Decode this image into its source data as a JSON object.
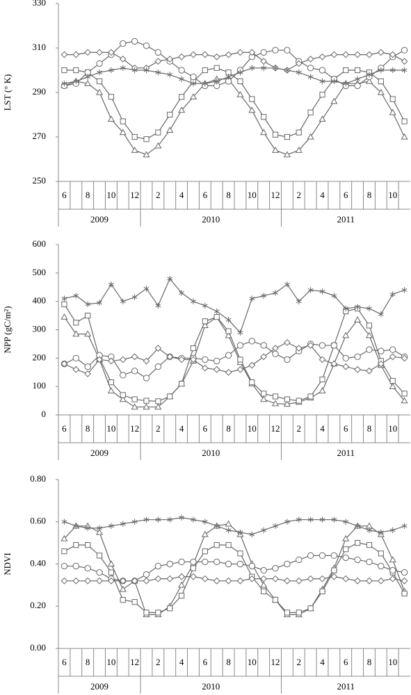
{
  "chart_data": [
    {
      "type": "line",
      "ylabel": "LST (° K)",
      "ylim": [
        250,
        330
      ],
      "yticks": [
        250,
        270,
        290,
        310,
        330
      ],
      "categories": [
        "6",
        null,
        "8",
        null,
        "10",
        null,
        "12",
        null,
        "2",
        null,
        "4",
        null,
        "6",
        null,
        "8",
        null,
        "10",
        null,
        "12",
        null,
        "2",
        null,
        "4",
        null,
        "6",
        null,
        "8",
        null,
        "10",
        null
      ],
      "years": [
        "2009",
        "2010",
        "2011"
      ],
      "series": [
        {
          "marker": "triangle",
          "color": "#666666",
          "values": [
            293,
            295,
            294,
            290,
            278,
            272,
            264,
            262,
            266,
            273,
            282,
            288,
            294,
            296,
            296,
            289,
            282,
            272,
            264,
            262,
            264,
            270,
            278,
            286,
            294,
            294,
            295,
            290,
            281,
            270
          ]
        },
        {
          "marker": "square",
          "color": "#666666",
          "values": [
            300,
            300,
            299,
            295,
            288,
            277,
            270,
            269,
            272,
            280,
            288,
            295,
            300,
            301,
            299,
            295,
            287,
            279,
            271,
            270,
            272,
            281,
            289,
            296,
            300,
            300,
            299,
            295,
            287,
            277
          ]
        },
        {
          "marker": "circle",
          "color": "#666666",
          "values": [
            293,
            294,
            299,
            303,
            307,
            312,
            313,
            311,
            308,
            304,
            300,
            297,
            293,
            293,
            295,
            300,
            306,
            308,
            309,
            309,
            304,
            301,
            300,
            296,
            293,
            293,
            297,
            301,
            306,
            309
          ]
        },
        {
          "marker": "diamond",
          "color": "#666666",
          "values": [
            307,
            307,
            308,
            308,
            308,
            305,
            301,
            301,
            304,
            305,
            306,
            307,
            307,
            306,
            307,
            308,
            308,
            304,
            301,
            300,
            303,
            305,
            306,
            307,
            307,
            307,
            307,
            308,
            307,
            304
          ]
        },
        {
          "marker": "asterisk",
          "color": "#666666",
          "values": [
            294,
            295,
            297,
            299,
            300,
            301,
            300,
            300,
            299,
            298,
            296,
            294,
            294,
            295,
            297,
            299,
            301,
            301,
            301,
            300,
            299,
            297,
            295,
            295,
            294,
            296,
            298,
            300,
            300,
            300
          ]
        }
      ]
    },
    {
      "type": "line",
      "ylabel": "NPP (gC/m²)",
      "ylim": [
        0,
        600
      ],
      "yticks": [
        0,
        100,
        200,
        300,
        400,
        500,
        600
      ],
      "categories": [
        "6",
        null,
        "8",
        null,
        "10",
        null,
        "12",
        null,
        "2",
        null,
        "4",
        null,
        "6",
        null,
        "8",
        null,
        "10",
        null,
        "12",
        null,
        "2",
        null,
        "4",
        null,
        "6",
        null,
        "8",
        null,
        "10",
        null
      ],
      "years": [
        "2009",
        "2010",
        "2011"
      ],
      "series": [
        {
          "marker": "triangle",
          "color": "#666666",
          "values": [
            345,
            285,
            285,
            195,
            85,
            55,
            28,
            28,
            28,
            65,
            110,
            190,
            315,
            345,
            280,
            185,
            110,
            55,
            40,
            38,
            45,
            60,
            85,
            180,
            280,
            335,
            280,
            175,
            100,
            50
          ]
        },
        {
          "marker": "square",
          "color": "#666666",
          "values": [
            390,
            325,
            350,
            200,
            115,
            70,
            55,
            50,
            48,
            65,
            110,
            235,
            330,
            345,
            295,
            195,
            115,
            75,
            65,
            55,
            50,
            65,
            125,
            245,
            365,
            375,
            315,
            190,
            120,
            75
          ]
        },
        {
          "marker": "circle",
          "color": "#666666",
          "values": [
            180,
            200,
            170,
            210,
            205,
            140,
            155,
            130,
            170,
            205,
            200,
            200,
            195,
            190,
            210,
            245,
            260,
            245,
            215,
            195,
            225,
            250,
            245,
            245,
            200,
            205,
            230,
            225,
            230,
            205
          ]
        },
        {
          "marker": "diamond",
          "color": "#666666",
          "values": [
            180,
            160,
            145,
            195,
            190,
            195,
            205,
            190,
            235,
            205,
            195,
            195,
            165,
            160,
            150,
            160,
            175,
            205,
            235,
            255,
            235,
            245,
            195,
            180,
            170,
            160,
            155,
            180,
            205,
            200
          ]
        },
        {
          "marker": "asterisk",
          "color": "#666666",
          "values": [
            410,
            420,
            390,
            395,
            460,
            400,
            415,
            445,
            385,
            480,
            430,
            400,
            385,
            365,
            335,
            290,
            410,
            420,
            430,
            460,
            400,
            440,
            435,
            420,
            375,
            380,
            375,
            355,
            425,
            440
          ]
        }
      ]
    },
    {
      "type": "line",
      "ylabel": "NDVI",
      "ylim": [
        0,
        0.8
      ],
      "yticks": [
        {
          "value": 0,
          "label": "0.00"
        },
        {
          "value": 0.2,
          "label": "0.20"
        },
        {
          "value": 0.4,
          "label": "0.40"
        },
        {
          "value": 0.6,
          "label": "0.60"
        },
        {
          "value": 0.8,
          "label": "0.80"
        }
      ],
      "categories": [
        "6",
        null,
        "8",
        null,
        "10",
        null,
        "12",
        null,
        "2",
        null,
        "4",
        null,
        "6",
        null,
        "8",
        null,
        "10",
        null,
        "12",
        null,
        "2",
        null,
        "4",
        null,
        "6",
        null,
        "8",
        null,
        "10",
        null
      ],
      "years": [
        "2009",
        "2010",
        "2011"
      ],
      "series": [
        {
          "marker": "triangle",
          "color": "#666666",
          "values": [
            0.52,
            0.58,
            0.58,
            0.55,
            0.4,
            0.28,
            0.32,
            0.16,
            0.16,
            0.2,
            0.3,
            0.4,
            0.54,
            0.58,
            0.59,
            0.54,
            0.4,
            0.3,
            0.23,
            0.16,
            0.16,
            0.19,
            0.28,
            0.38,
            0.52,
            0.58,
            0.58,
            0.54,
            0.42,
            0.27
          ]
        },
        {
          "marker": "square",
          "color": "#666666",
          "values": [
            0.46,
            0.49,
            0.49,
            0.44,
            0.36,
            0.23,
            0.22,
            0.17,
            0.17,
            0.19,
            0.25,
            0.38,
            0.46,
            0.49,
            0.49,
            0.45,
            0.34,
            0.27,
            0.23,
            0.17,
            0.17,
            0.19,
            0.27,
            0.37,
            0.47,
            0.5,
            0.49,
            0.45,
            0.36,
            0.26
          ]
        },
        {
          "marker": "circle",
          "color": "#666666",
          "values": [
            0.39,
            0.39,
            0.38,
            0.36,
            0.33,
            0.32,
            0.32,
            0.35,
            0.39,
            0.4,
            0.41,
            0.41,
            0.41,
            0.41,
            0.4,
            0.4,
            0.39,
            0.37,
            0.38,
            0.4,
            0.42,
            0.44,
            0.44,
            0.44,
            0.43,
            0.42,
            0.41,
            0.39,
            0.37,
            0.36
          ]
        },
        {
          "marker": "diamond",
          "color": "#666666",
          "values": [
            0.32,
            0.32,
            0.32,
            0.32,
            0.32,
            0.32,
            0.32,
            0.32,
            0.33,
            0.33,
            0.34,
            0.34,
            0.33,
            0.32,
            0.32,
            0.32,
            0.33,
            0.33,
            0.33,
            0.32,
            0.32,
            0.33,
            0.33,
            0.34,
            0.33,
            0.32,
            0.32,
            0.32,
            0.33,
            0.32
          ]
        },
        {
          "marker": "asterisk",
          "color": "#666666",
          "values": [
            0.6,
            0.58,
            0.57,
            0.57,
            0.58,
            0.59,
            0.6,
            0.61,
            0.61,
            0.61,
            0.62,
            0.61,
            0.6,
            0.58,
            0.56,
            0.55,
            0.54,
            0.56,
            0.58,
            0.6,
            0.61,
            0.61,
            0.61,
            0.61,
            0.6,
            0.58,
            0.56,
            0.55,
            0.56,
            0.58
          ]
        }
      ]
    }
  ]
}
